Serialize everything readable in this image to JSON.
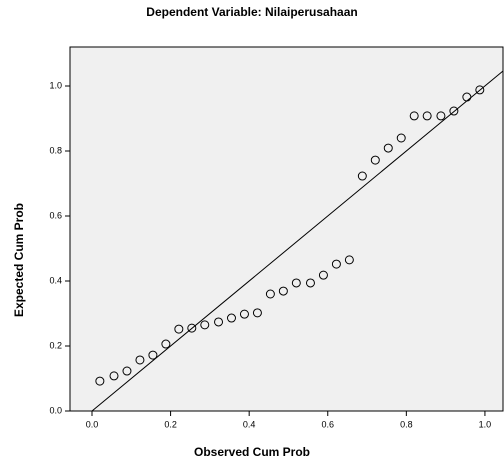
{
  "chart_data": {
    "type": "scatter",
    "title": "Dependent Variable: Nilaiperusahaan",
    "x_label": "Observed Cum Prob",
    "y_label": "Expected Cum Prob",
    "x": [
      0.02,
      0.056,
      0.089,
      0.122,
      0.155,
      0.188,
      0.221,
      0.254,
      0.287,
      0.322,
      0.355,
      0.388,
      0.421,
      0.454,
      0.487,
      0.52,
      0.556,
      0.589,
      0.622,
      0.655,
      0.688,
      0.721,
      0.754,
      0.787,
      0.82,
      0.853,
      0.888,
      0.921,
      0.954,
      0.987
    ],
    "values": [
      0.092,
      0.108,
      0.123,
      0.157,
      0.172,
      0.206,
      0.252,
      0.255,
      0.265,
      0.274,
      0.286,
      0.298,
      0.302,
      0.36,
      0.369,
      0.394,
      0.394,
      0.418,
      0.452,
      0.465,
      0.723,
      0.772,
      0.809,
      0.84,
      0.908,
      0.908,
      0.908,
      0.923,
      0.966,
      0.988
    ],
    "color": "#000000",
    "xlim": [
      -0.056,
      1.046
    ],
    "ylim": [
      0,
      1.12
    ],
    "xticks": [
      {
        "value": 0,
        "label": "0.0"
      },
      0.2,
      0.4,
      0.6,
      0.8,
      {
        "value": 1,
        "label": "1.0"
      }
    ],
    "yticks": [
      {
        "value": 0,
        "label": "0.0"
      },
      0.2,
      0.4,
      0.6,
      0.8,
      {
        "value": 1,
        "label": "1.0"
      }
    ],
    "grid": false
  }
}
